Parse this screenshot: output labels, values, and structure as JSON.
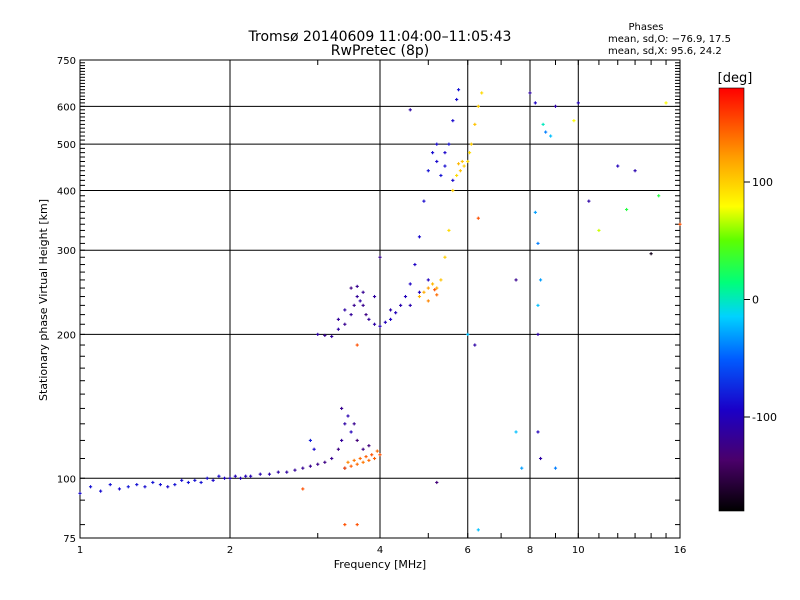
{
  "chart_data": {
    "type": "scatter",
    "title": "Tromsø 20140609 11:04:00–11:05:43",
    "subtitle": "RwPretec (8p)",
    "xlabel": "Frequency [MHz]",
    "ylabel": "Stationary phase Virtual Height [km]",
    "x_scale": "log",
    "y_scale": "log",
    "xlim": [
      1,
      16
    ],
    "ylim": [
      75,
      750
    ],
    "x_ticks": [
      1,
      2,
      4,
      6,
      8,
      10,
      16
    ],
    "x_tick_labels": [
      "1",
      "2",
      "4",
      "6",
      "8",
      "10",
      "16"
    ],
    "y_ticks": [
      75,
      100,
      200,
      300,
      400,
      500,
      600,
      750
    ],
    "y_tick_labels": [
      "75",
      "100",
      "200",
      "300",
      "400",
      "500",
      "600",
      "750"
    ],
    "grid": true,
    "info": {
      "heading": "Phases",
      "line_o": "mean, sd,O: −76.9, 17.5",
      "line_x": "mean, sd,X:  95.6, 24.2"
    },
    "colorbar": {
      "title": "[deg]",
      "range": [
        -180,
        180
      ],
      "ticks": [
        100,
        0,
        -100
      ],
      "tick_labels": [
        "100",
        "0",
        "-100"
      ],
      "colormap": "rainbow"
    },
    "series": [
      {
        "points": [
          [
            1.0,
            93,
            -90
          ],
          [
            1.05,
            96,
            -85
          ],
          [
            1.1,
            94,
            -88
          ],
          [
            1.15,
            97,
            -85
          ],
          [
            1.2,
            95,
            -90
          ],
          [
            1.25,
            96,
            -82
          ],
          [
            1.3,
            97,
            -85
          ],
          [
            1.35,
            96,
            -88
          ],
          [
            1.4,
            98,
            -84
          ],
          [
            1.45,
            97,
            -86
          ],
          [
            1.5,
            96,
            -90
          ],
          [
            1.55,
            97,
            -85
          ],
          [
            1.6,
            99,
            -88
          ],
          [
            1.65,
            98,
            -84
          ],
          [
            1.7,
            99,
            -86
          ],
          [
            1.75,
            98,
            -85
          ],
          [
            1.8,
            100,
            -88
          ],
          [
            1.85,
            99,
            -92
          ],
          [
            1.9,
            101,
            -90
          ],
          [
            1.95,
            100,
            -95
          ],
          [
            2.0,
            100,
            -98
          ],
          [
            2.05,
            101,
            -100
          ],
          [
            2.1,
            100,
            -102
          ],
          [
            2.15,
            101,
            -100
          ],
          [
            2.2,
            101,
            -103
          ],
          [
            2.3,
            102,
            -105
          ],
          [
            2.4,
            102,
            -108
          ],
          [
            2.5,
            103,
            -110
          ],
          [
            2.6,
            103,
            -112
          ],
          [
            2.7,
            104,
            -115
          ],
          [
            2.8,
            105,
            -118
          ],
          [
            2.9,
            106,
            -120
          ],
          [
            3.0,
            107,
            -122
          ],
          [
            3.1,
            108,
            -125
          ],
          [
            3.2,
            110,
            -120
          ],
          [
            3.3,
            115,
            -125
          ],
          [
            3.35,
            120,
            -115
          ],
          [
            3.4,
            130,
            -110
          ],
          [
            3.45,
            135,
            -105
          ],
          [
            3.5,
            125,
            -100
          ],
          [
            2.9,
            120,
            -80
          ],
          [
            2.95,
            115,
            -90
          ],
          [
            3.6,
            120,
            -130
          ],
          [
            3.7,
            115,
            -125
          ],
          [
            3.8,
            117,
            -128
          ],
          [
            3.35,
            140,
            -120
          ],
          [
            3.55,
            130,
            -120
          ],
          [
            3.4,
            105,
            -110
          ]
        ]
      },
      {
        "points": [
          [
            3.4,
            105,
            150
          ],
          [
            3.5,
            106,
            145
          ],
          [
            3.6,
            107,
            140
          ],
          [
            3.7,
            108,
            135
          ],
          [
            3.8,
            109,
            140
          ],
          [
            3.9,
            110,
            145
          ],
          [
            4.0,
            112,
            150
          ],
          [
            3.45,
            108,
            130
          ],
          [
            3.55,
            109,
            135
          ],
          [
            3.65,
            110,
            140
          ],
          [
            3.75,
            111,
            145
          ],
          [
            3.85,
            112,
            150
          ],
          [
            3.95,
            114,
            140
          ]
        ]
      },
      {
        "points": [
          [
            3.0,
            200,
            -110
          ],
          [
            3.1,
            199,
            -120
          ],
          [
            3.2,
            198,
            -115
          ],
          [
            3.3,
            205,
            -110
          ],
          [
            3.4,
            210,
            -120
          ],
          [
            3.5,
            220,
            -115
          ],
          [
            3.55,
            230,
            -120
          ],
          [
            3.6,
            240,
            -115
          ],
          [
            3.65,
            235,
            -110
          ],
          [
            3.7,
            230,
            -120
          ],
          [
            3.75,
            220,
            -125
          ],
          [
            3.8,
            215,
            -115
          ],
          [
            3.9,
            210,
            -110
          ],
          [
            4.0,
            208,
            -105
          ],
          [
            4.1,
            212,
            -100
          ],
          [
            4.2,
            215,
            -95
          ],
          [
            4.3,
            222,
            -100
          ],
          [
            4.4,
            230,
            -105
          ],
          [
            4.5,
            240,
            -100
          ],
          [
            4.6,
            255,
            -95
          ],
          [
            4.7,
            280,
            -95
          ],
          [
            4.8,
            320,
            -90
          ],
          [
            4.9,
            380,
            -90
          ],
          [
            5.0,
            440,
            -85
          ],
          [
            5.1,
            480,
            -88
          ],
          [
            5.2,
            460,
            -90
          ],
          [
            5.3,
            430,
            -85
          ],
          [
            5.4,
            450,
            -88
          ],
          [
            5.5,
            500,
            -85
          ],
          [
            5.6,
            560,
            -90
          ],
          [
            5.7,
            620,
            -88
          ],
          [
            5.75,
            650,
            -85
          ],
          [
            3.5,
            250,
            -125
          ],
          [
            3.6,
            252,
            -120
          ],
          [
            3.7,
            245,
            -118
          ],
          [
            4.0,
            290,
            -120
          ],
          [
            3.9,
            240,
            -112
          ],
          [
            4.2,
            225,
            -108
          ],
          [
            4.6,
            230,
            -105
          ],
          [
            4.8,
            245,
            -100
          ],
          [
            5.0,
            260,
            -98
          ],
          [
            3.3,
            215,
            -115
          ],
          [
            3.4,
            225,
            -110
          ],
          [
            5.6,
            420,
            -90
          ],
          [
            5.4,
            480,
            -92
          ],
          [
            5.2,
            500,
            -90
          ]
        ]
      },
      {
        "points": [
          [
            4.8,
            240,
            110
          ],
          [
            4.9,
            245,
            115
          ],
          [
            5.0,
            250,
            120
          ],
          [
            5.1,
            255,
            110
          ],
          [
            5.2,
            250,
            115
          ],
          [
            5.3,
            260,
            105
          ],
          [
            5.4,
            290,
            100
          ],
          [
            5.5,
            330,
            95
          ],
          [
            5.6,
            400,
            100
          ],
          [
            5.7,
            430,
            95
          ],
          [
            5.8,
            440,
            105
          ],
          [
            5.9,
            450,
            100
          ],
          [
            6.0,
            460,
            95
          ],
          [
            6.1,
            500,
            100
          ],
          [
            6.2,
            550,
            105
          ],
          [
            6.3,
            600,
            100
          ],
          [
            6.4,
            640,
            95
          ],
          [
            5.75,
            455,
            110
          ],
          [
            5.85,
            460,
            105
          ],
          [
            6.05,
            480,
            95
          ],
          [
            5.2,
            242,
            140
          ],
          [
            5.0,
            235,
            130
          ],
          [
            5.15,
            248,
            150
          ]
        ]
      },
      {
        "points": [
          [
            8.0,
            640,
            -110
          ],
          [
            8.2,
            610,
            -95
          ],
          [
            8.5,
            550,
            0
          ],
          [
            8.6,
            530,
            -40
          ],
          [
            8.8,
            520,
            -20
          ],
          [
            9.0,
            600,
            -110
          ],
          [
            9.8,
            560,
            80
          ],
          [
            10.0,
            610,
            -100
          ],
          [
            10.5,
            380,
            -110
          ],
          [
            12.0,
            450,
            -100
          ],
          [
            13.0,
            440,
            -105
          ],
          [
            14.5,
            390,
            30
          ],
          [
            16.0,
            340,
            150
          ],
          [
            14.0,
            295,
            -170
          ],
          [
            11.0,
            330,
            70
          ],
          [
            8.2,
            360,
            -30
          ],
          [
            8.3,
            310,
            -40
          ],
          [
            8.4,
            260,
            -30
          ],
          [
            8.3,
            230,
            -20
          ],
          [
            8.3,
            200,
            -110
          ],
          [
            8.3,
            125,
            -100
          ],
          [
            8.4,
            110,
            -110
          ],
          [
            9.0,
            105,
            -40
          ],
          [
            7.5,
            260,
            -120
          ],
          [
            7.5,
            125,
            -20
          ],
          [
            7.7,
            105,
            -30
          ],
          [
            6.3,
            350,
            150
          ],
          [
            6.0,
            200,
            -20
          ],
          [
            6.2,
            190,
            -110
          ],
          [
            6.3,
            78,
            -20
          ],
          [
            2.8,
            95,
            150
          ],
          [
            3.4,
            80,
            150
          ],
          [
            3.6,
            80,
            150
          ],
          [
            5.2,
            98,
            -130
          ],
          [
            3.6,
            190,
            150
          ],
          [
            4.6,
            590,
            -110
          ],
          [
            12.5,
            365,
            30
          ],
          [
            15.0,
            610,
            80
          ]
        ]
      }
    ]
  }
}
